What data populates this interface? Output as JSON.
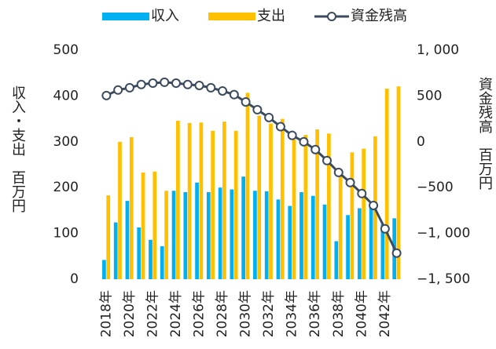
{
  "chart_data": {
    "type": "bar_line",
    "y_label": "収入・支出　百万円",
    "y2_label": "資金残高　百万円",
    "categories": [
      "2018年",
      null,
      "2020年",
      null,
      "2022年",
      null,
      "2024年",
      null,
      "2026年",
      null,
      "2028年",
      null,
      "2030年",
      null,
      "2032年",
      null,
      "2034年",
      null,
      "2036年",
      null,
      "2038年",
      null,
      "2040年",
      null,
      "2042年",
      null
    ],
    "series": [
      {
        "name": "収入",
        "color": "#00b0f0",
        "values": [
          42,
          124,
          171,
          113,
          86,
          72,
          193,
          190,
          211,
          190,
          200,
          196,
          224,
          193,
          192,
          174,
          160,
          190,
          182,
          163,
          83,
          140,
          155,
          163,
          120,
          133
        ]
      },
      {
        "name": "支出",
        "color": "#ffc000",
        "values": [
          183,
          300,
          310,
          233,
          235,
          193,
          346,
          341,
          342,
          324,
          344,
          324,
          407,
          357,
          340,
          350,
          305,
          315,
          327,
          318,
          230,
          277,
          285,
          312,
          416,
          421
        ]
      },
      {
        "name": "資金残高",
        "color": "#3b4a5c",
        "axis": "y2",
        "type": "line",
        "values": [
          505,
          565,
          590,
          625,
          640,
          650,
          640,
          625,
          615,
          590,
          555,
          515,
          435,
          350,
          265,
          165,
          70,
          0,
          -85,
          -205,
          -335,
          -445,
          -565,
          -695,
          -950,
          -1215
        ]
      }
    ],
    "ylim": [
      0,
      500
    ],
    "yticks": [
      0,
      100,
      200,
      300,
      400,
      500
    ],
    "y2lim": [
      -1500,
      1000
    ],
    "y2ticks": [
      {
        "value": -1500,
        "label": "−1, 500"
      },
      {
        "value": -1000,
        "label": "−1, 000"
      },
      {
        "value": -500,
        "label": "−500"
      },
      0,
      500,
      {
        "value": 1000,
        "label": "1, 000"
      }
    ],
    "y2_negative_color": "#e60012",
    "legend": "top"
  }
}
